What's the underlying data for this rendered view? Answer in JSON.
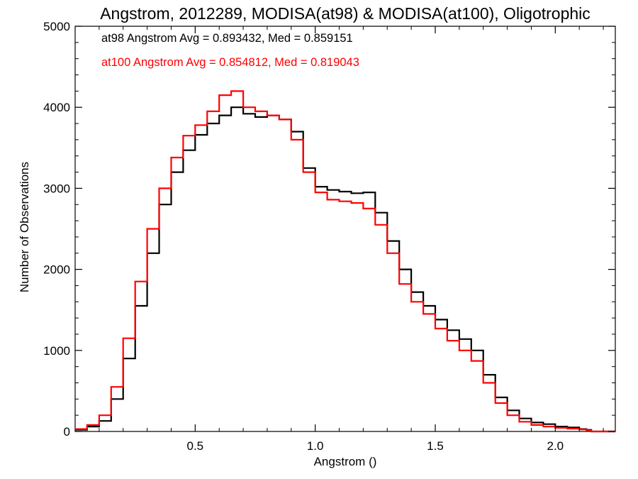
{
  "chart_data": {
    "type": "line",
    "style": "step-histogram",
    "title": "Angstrom, 2012289, MODISA(at98) & MODISA(at100), Oligotrophic",
    "xlabel": "Angstrom ()",
    "ylabel": "Number of Observations",
    "xlim": [
      0.0,
      2.25
    ],
    "ylim": [
      0,
      5000
    ],
    "xticks": [
      0.5,
      1.0,
      1.5,
      2.0
    ],
    "xtick_labels": [
      "0.5",
      "1.0",
      "1.5",
      "2.0"
    ],
    "yticks": [
      0,
      1000,
      2000,
      3000,
      4000,
      5000
    ],
    "ytick_labels": [
      "0",
      "1000",
      "2000",
      "3000",
      "4000",
      "5000"
    ],
    "grid": false,
    "legend_placement": "top-left",
    "annotations": [
      {
        "text": "at98 Angstrom Avg = 0.893432, Med = 0.859151",
        "color": "#000000"
      },
      {
        "text": "at100 Angstrom Avg = 0.854812, Med = 0.819043",
        "color": "#ff0000"
      }
    ],
    "series": [
      {
        "color": "#000000",
        "x": [
          0.0,
          0.05,
          0.1,
          0.15,
          0.2,
          0.25,
          0.3,
          0.35,
          0.4,
          0.45,
          0.5,
          0.55,
          0.6,
          0.65,
          0.7,
          0.75,
          0.8,
          0.85,
          0.9,
          0.95,
          1.0,
          1.05,
          1.1,
          1.15,
          1.2,
          1.25,
          1.3,
          1.35,
          1.4,
          1.45,
          1.5,
          1.55,
          1.6,
          1.65,
          1.7,
          1.75,
          1.8,
          1.85,
          1.9,
          1.95,
          2.0,
          2.05,
          2.1,
          2.13,
          2.15,
          2.25
        ],
        "values": [
          20,
          60,
          130,
          400,
          900,
          1550,
          2200,
          2800,
          3200,
          3470,
          3660,
          3800,
          3900,
          4000,
          3920,
          3880,
          3900,
          3850,
          3700,
          3250,
          3020,
          2980,
          2960,
          2940,
          2950,
          2700,
          2350,
          2000,
          1720,
          1550,
          1380,
          1250,
          1140,
          1000,
          700,
          420,
          260,
          160,
          110,
          90,
          60,
          50,
          30,
          20,
          0,
          0
        ]
      },
      {
        "color": "#ff0000",
        "x": [
          0.0,
          0.05,
          0.1,
          0.15,
          0.2,
          0.25,
          0.3,
          0.35,
          0.4,
          0.45,
          0.5,
          0.55,
          0.6,
          0.65,
          0.7,
          0.75,
          0.8,
          0.85,
          0.9,
          0.95,
          1.0,
          1.05,
          1.1,
          1.15,
          1.2,
          1.25,
          1.3,
          1.35,
          1.4,
          1.45,
          1.5,
          1.55,
          1.6,
          1.65,
          1.7,
          1.75,
          1.8,
          1.85,
          1.9,
          1.95,
          2.0,
          2.05,
          2.1,
          2.13,
          2.15,
          2.25
        ],
        "values": [
          30,
          80,
          200,
          550,
          1150,
          1850,
          2500,
          3000,
          3380,
          3650,
          3780,
          3950,
          4150,
          4200,
          4000,
          3950,
          3900,
          3850,
          3600,
          3200,
          2950,
          2860,
          2840,
          2820,
          2750,
          2550,
          2200,
          1820,
          1600,
          1450,
          1270,
          1120,
          1000,
          870,
          600,
          350,
          200,
          120,
          80,
          60,
          45,
          35,
          25,
          15,
          0,
          0
        ]
      }
    ]
  }
}
